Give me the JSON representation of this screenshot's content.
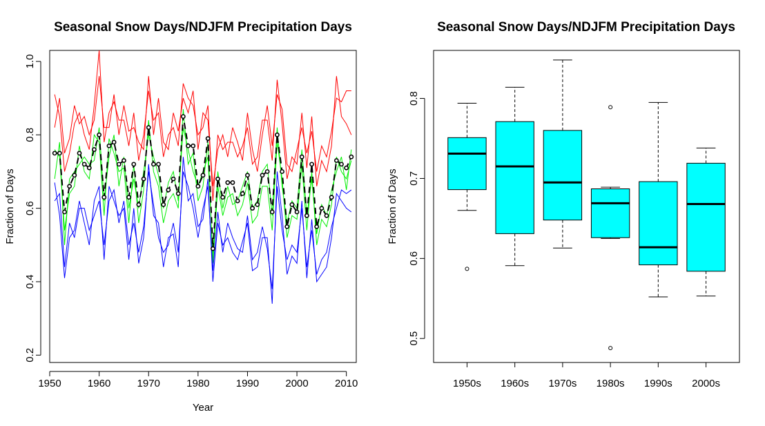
{
  "colors": {
    "upper": "#ff0000",
    "middle": "#00ee00",
    "lower": "#0000ff",
    "mean": "#000000",
    "box_fill": "#00ffff"
  },
  "chart_data": [
    {
      "type": "line",
      "title": "Seasonal Snow Days/NDJFM Precipitation Days",
      "xlabel": "Year",
      "ylabel": "Fraction of Days",
      "xlim": [
        1950,
        2012
      ],
      "ylim": [
        0.18,
        1.03
      ],
      "xticks": [
        "1950",
        "1960",
        "1970",
        "1980",
        "1990",
        "2000",
        "2010"
      ],
      "yticks": [
        "0.2",
        "0.4",
        "0.6",
        "0.8",
        "1.0"
      ],
      "grid": false,
      "x": [
        1951,
        1952,
        1953,
        1954,
        1955,
        1956,
        1957,
        1958,
        1959,
        1960,
        1961,
        1962,
        1963,
        1964,
        1965,
        1966,
        1967,
        1968,
        1969,
        1970,
        1971,
        1972,
        1973,
        1974,
        1975,
        1976,
        1977,
        1978,
        1979,
        1980,
        1981,
        1982,
        1983,
        1984,
        1985,
        1986,
        1987,
        1988,
        1989,
        1990,
        1991,
        1992,
        1993,
        1994,
        1995,
        1996,
        1997,
        1998,
        1999,
        2000,
        2001,
        2002,
        2003,
        2004,
        2005,
        2006,
        2007,
        2008,
        2009,
        2010,
        2011
      ],
      "series": [
        {
          "key": "mean",
          "style": "points-dashed",
          "values": [
            0.75,
            0.75,
            0.59,
            0.66,
            0.69,
            0.75,
            0.72,
            0.71,
            0.76,
            0.8,
            0.63,
            0.77,
            0.78,
            0.72,
            0.73,
            0.63,
            0.72,
            0.61,
            0.68,
            0.82,
            0.72,
            0.72,
            0.61,
            0.65,
            0.68,
            0.64,
            0.85,
            0.77,
            0.77,
            0.66,
            0.69,
            0.79,
            0.49,
            0.68,
            0.63,
            0.67,
            0.67,
            0.62,
            0.64,
            0.69,
            0.6,
            0.61,
            0.69,
            0.7,
            0.59,
            0.8,
            0.7,
            0.55,
            0.61,
            0.59,
            0.74,
            0.58,
            0.72,
            0.55,
            0.6,
            0.58,
            0.63,
            0.73,
            0.72,
            0.71,
            0.74
          ]
        },
        {
          "key": "upper",
          "style": "line",
          "values": [
            0.91,
            0.85,
            0.7,
            0.75,
            0.83,
            0.86,
            0.8,
            0.76,
            0.88,
            1.03,
            0.78,
            0.86,
            0.89,
            0.84,
            0.84,
            0.77,
            0.86,
            0.73,
            0.8,
            0.92,
            0.84,
            0.86,
            0.74,
            0.8,
            0.82,
            0.77,
            0.94,
            0.9,
            0.88,
            0.8,
            0.82,
            0.88,
            0.62,
            0.8,
            0.76,
            0.78,
            0.78,
            0.74,
            0.77,
            0.82,
            0.72,
            0.74,
            0.84,
            0.84,
            0.73,
            0.95,
            0.83,
            0.68,
            0.74,
            0.72,
            0.86,
            0.71,
            0.85,
            0.66,
            0.73,
            0.7,
            0.77,
            0.96,
            0.85,
            0.83,
            0.8
          ]
        },
        {
          "key": "upper",
          "style": "line",
          "values": [
            0.82,
            0.9,
            0.75,
            0.79,
            0.88,
            0.83,
            0.85,
            0.8,
            0.84,
            0.96,
            0.82,
            0.82,
            0.91,
            0.8,
            0.88,
            0.81,
            0.82,
            0.78,
            0.76,
            0.96,
            0.8,
            0.9,
            0.78,
            0.76,
            0.86,
            0.81,
            0.9,
            0.86,
            0.92,
            0.76,
            0.86,
            0.84,
            0.66,
            0.76,
            0.8,
            0.74,
            0.82,
            0.78,
            0.73,
            0.86,
            0.76,
            0.7,
            0.8,
            0.88,
            0.77,
            0.91,
            0.87,
            0.72,
            0.7,
            0.76,
            0.82,
            0.75,
            0.81,
            0.7,
            0.77,
            0.74,
            0.81,
            0.9,
            0.89,
            0.92,
            0.92
          ]
        },
        {
          "key": "middle",
          "style": "line",
          "values": [
            0.76,
            0.74,
            0.54,
            0.64,
            0.66,
            0.77,
            0.7,
            0.68,
            0.8,
            0.78,
            0.58,
            0.79,
            0.75,
            0.7,
            0.71,
            0.56,
            0.72,
            0.56,
            0.65,
            0.84,
            0.7,
            0.66,
            0.56,
            0.62,
            0.64,
            0.6,
            0.87,
            0.72,
            0.75,
            0.62,
            0.66,
            0.78,
            0.45,
            0.66,
            0.58,
            0.63,
            0.64,
            0.58,
            0.61,
            0.67,
            0.56,
            0.58,
            0.66,
            0.66,
            0.54,
            0.78,
            0.68,
            0.52,
            0.58,
            0.57,
            0.72,
            0.54,
            0.7,
            0.5,
            0.57,
            0.55,
            0.61,
            0.74,
            0.7,
            0.68,
            0.73
          ]
        },
        {
          "key": "middle",
          "style": "line",
          "values": [
            0.68,
            0.78,
            0.5,
            0.68,
            0.7,
            0.72,
            0.74,
            0.72,
            0.73,
            0.82,
            0.62,
            0.74,
            0.8,
            0.66,
            0.74,
            0.6,
            0.68,
            0.6,
            0.7,
            0.8,
            0.74,
            0.69,
            0.6,
            0.67,
            0.7,
            0.62,
            0.82,
            0.76,
            0.7,
            0.66,
            0.7,
            0.74,
            0.47,
            0.7,
            0.6,
            0.66,
            0.61,
            0.62,
            0.66,
            0.7,
            0.6,
            0.62,
            0.7,
            0.72,
            0.58,
            0.82,
            0.66,
            0.56,
            0.62,
            0.6,
            0.76,
            0.58,
            0.68,
            0.53,
            0.61,
            0.58,
            0.65,
            0.7,
            0.74,
            0.65,
            0.76
          ]
        },
        {
          "key": "lower",
          "style": "line",
          "values": [
            0.67,
            0.58,
            0.41,
            0.52,
            0.54,
            0.62,
            0.56,
            0.5,
            0.62,
            0.66,
            0.46,
            0.66,
            0.62,
            0.58,
            0.6,
            0.46,
            0.6,
            0.45,
            0.52,
            0.72,
            0.58,
            0.56,
            0.44,
            0.52,
            0.53,
            0.44,
            0.74,
            0.62,
            0.64,
            0.55,
            0.57,
            0.68,
            0.4,
            0.56,
            0.5,
            0.52,
            0.48,
            0.46,
            0.51,
            0.56,
            0.43,
            0.44,
            0.52,
            0.52,
            0.34,
            0.7,
            0.58,
            0.42,
            0.47,
            0.45,
            0.62,
            0.41,
            0.57,
            0.4,
            0.42,
            0.44,
            0.52,
            0.64,
            0.62,
            0.6,
            0.59
          ]
        },
        {
          "key": "lower",
          "style": "line",
          "values": [
            0.62,
            0.64,
            0.44,
            0.56,
            0.52,
            0.6,
            0.6,
            0.54,
            0.58,
            0.62,
            0.5,
            0.62,
            0.65,
            0.56,
            0.62,
            0.5,
            0.56,
            0.48,
            0.55,
            0.7,
            0.61,
            0.52,
            0.48,
            0.5,
            0.56,
            0.48,
            0.7,
            0.66,
            0.6,
            0.52,
            0.6,
            0.66,
            0.43,
            0.59,
            0.48,
            0.56,
            0.52,
            0.49,
            0.48,
            0.58,
            0.46,
            0.48,
            0.55,
            0.49,
            0.38,
            0.66,
            0.54,
            0.46,
            0.5,
            0.48,
            0.6,
            0.44,
            0.54,
            0.42,
            0.46,
            0.48,
            0.55,
            0.6,
            0.65,
            0.64,
            0.65
          ]
        }
      ]
    },
    {
      "type": "box",
      "title": "Seasonal Snow Days/NDJFM Precipitation Days",
      "xlabel": "",
      "ylabel": "Fraction of Days",
      "ylim": [
        0.47,
        0.86
      ],
      "yticks": [
        "0.5",
        "0.6",
        "0.7",
        "0.8"
      ],
      "categories": [
        "1950s",
        "1960s",
        "1970s",
        "1980s",
        "1990s",
        "2000s"
      ],
      "boxes": [
        {
          "low": 0.66,
          "q1": 0.686,
          "median": 0.731,
          "q3": 0.751,
          "high": 0.794,
          "outliers": [
            0.587
          ]
        },
        {
          "low": 0.591,
          "q1": 0.631,
          "median": 0.715,
          "q3": 0.771,
          "high": 0.814,
          "outliers": []
        },
        {
          "low": 0.613,
          "q1": 0.648,
          "median": 0.695,
          "q3": 0.76,
          "high": 0.848,
          "outliers": []
        },
        {
          "low": 0.625,
          "q1": 0.626,
          "median": 0.669,
          "q3": 0.687,
          "high": 0.689,
          "outliers": [
            0.789,
            0.488
          ]
        },
        {
          "low": 0.552,
          "q1": 0.592,
          "median": 0.614,
          "q3": 0.696,
          "high": 0.795,
          "outliers": []
        },
        {
          "low": 0.553,
          "q1": 0.584,
          "median": 0.668,
          "q3": 0.719,
          "high": 0.738,
          "outliers": []
        }
      ]
    }
  ]
}
